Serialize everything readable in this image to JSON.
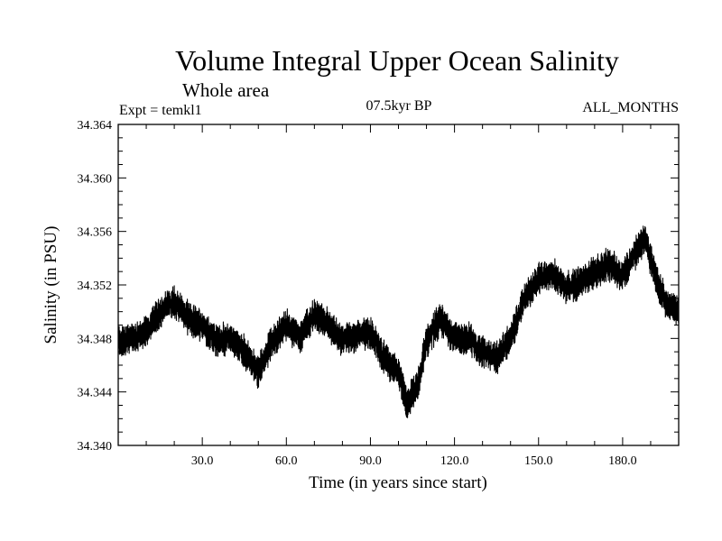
{
  "chart_data": {
    "type": "line",
    "title": "Volume Integral Upper Ocean Salinity",
    "subtitle": "Whole area",
    "experiment": "Expt = temkl1",
    "period": "07.5kyr BP",
    "months": "ALL_MONTHS",
    "xlabel": "Time (in years since start)",
    "ylabel": "Salinity (in PSU)",
    "xlim": [
      0,
      200
    ],
    "ylim": [
      34.34,
      34.364
    ],
    "xticks": [
      30.0,
      60.0,
      90.0,
      120.0,
      150.0,
      180.0
    ],
    "xtick_labels": [
      "30.0",
      "60.0",
      "90.0",
      "120.0",
      "150.0",
      "180.0"
    ],
    "yticks": [
      34.34,
      34.344,
      34.348,
      34.352,
      34.356,
      34.36,
      34.364
    ],
    "ytick_labels": [
      "34.340",
      "34.344",
      "34.348",
      "34.352",
      "34.356",
      "34.360",
      "34.364"
    ],
    "grid": false,
    "series": [
      {
        "name": "salinity",
        "color": "#000000",
        "noise_amplitude": 0.0012,
        "x": [
          0,
          5,
          10,
          15,
          20,
          25,
          30,
          35,
          40,
          45,
          50,
          55,
          60,
          65,
          70,
          75,
          80,
          85,
          90,
          95,
          100,
          103,
          107,
          110,
          115,
          120,
          125,
          130,
          135,
          140,
          145,
          150,
          155,
          160,
          165,
          170,
          175,
          180,
          185,
          188,
          192,
          196,
          200
        ],
        "values": [
          34.3478,
          34.348,
          34.3485,
          34.35,
          34.3508,
          34.3495,
          34.349,
          34.3478,
          34.348,
          34.347,
          34.3455,
          34.3478,
          34.349,
          34.3482,
          34.3498,
          34.349,
          34.3478,
          34.3482,
          34.3484,
          34.3465,
          34.3455,
          34.3432,
          34.3445,
          34.3478,
          34.3495,
          34.348,
          34.348,
          34.347,
          34.3465,
          34.348,
          34.351,
          34.3525,
          34.3528,
          34.3518,
          34.3522,
          34.353,
          34.3535,
          34.3527,
          34.3545,
          34.3555,
          34.3525,
          34.3503,
          34.3502
        ]
      }
    ]
  }
}
